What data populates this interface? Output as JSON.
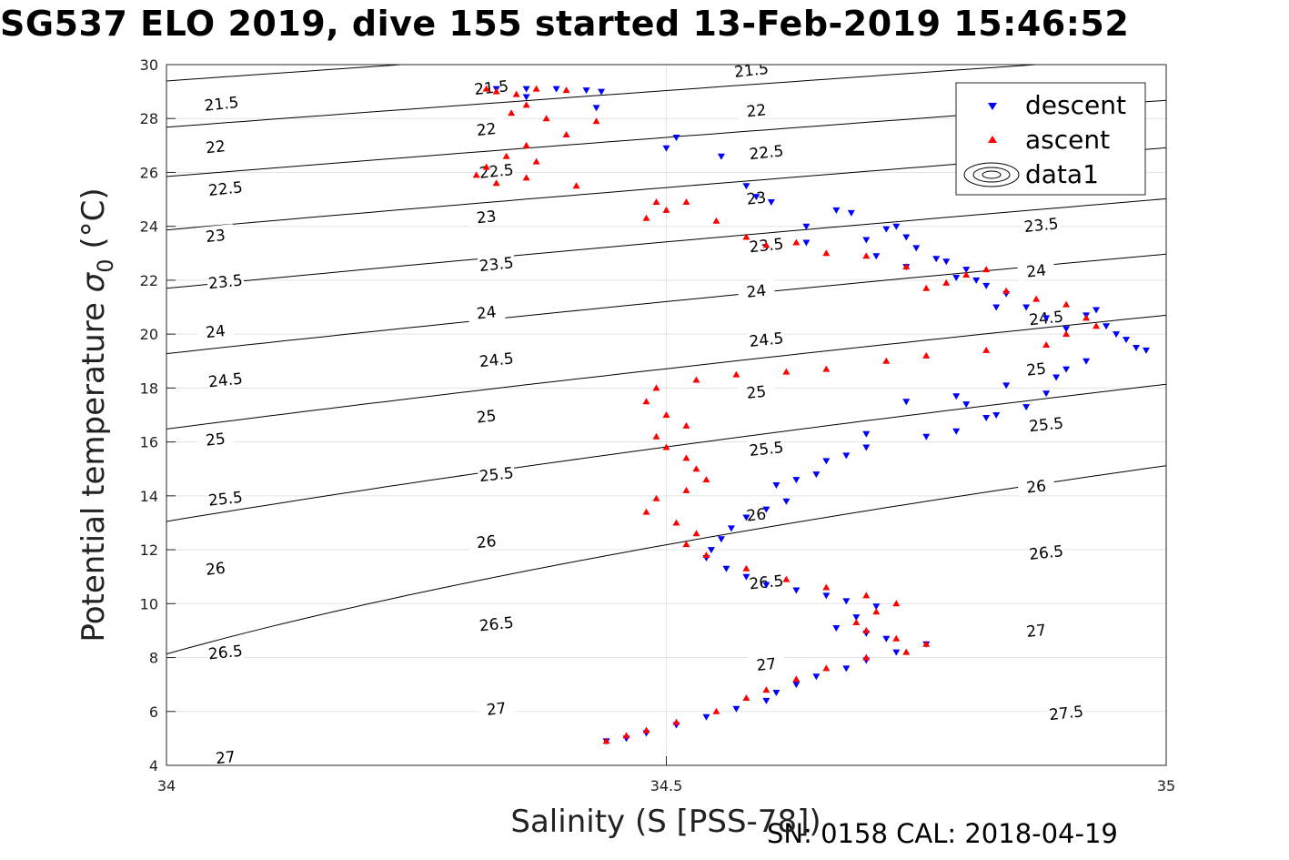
{
  "title": "SG537 ELO 2019, dive 155 started 13-Feb-2019 15:46:52",
  "footer": "SN: 0158  CAL: 2018-04-19",
  "chart_data": {
    "type": "scatter",
    "xlabel": "Salinity (S [PSS-78])",
    "ylabel_main": "Potential temperature ",
    "ylabel_sigma": "σ",
    "ylabel_sub": "0",
    "ylabel_unit": " (°C)",
    "xlim": [
      34,
      35
    ],
    "ylim": [
      4,
      30
    ],
    "xticks": [
      "34",
      "34.5",
      "35"
    ],
    "yticks": [
      "4",
      "6",
      "8",
      "10",
      "12",
      "14",
      "16",
      "18",
      "20",
      "22",
      "24",
      "26",
      "28",
      "30"
    ],
    "grid": true,
    "legend_position": "top-right",
    "legend": [
      "descent",
      "ascent",
      "data1"
    ],
    "colors": {
      "descent": "#0000ff",
      "ascent": "#ff0000",
      "contour": "#000000"
    },
    "contours": [
      21.5,
      22,
      22.5,
      23,
      23.5,
      24,
      24.5,
      25,
      25.5,
      26,
      26.5,
      27,
      27.5
    ],
    "contour_labels": [
      {
        "text": "21.5",
        "s": 34.055,
        "t": 28.55
      },
      {
        "text": "21.5",
        "s": 34.325,
        "t": 29.15
      },
      {
        "text": "21.5",
        "s": 34.585,
        "t": 29.8
      },
      {
        "text": "22",
        "s": 34.049,
        "t": 26.95
      },
      {
        "text": "22",
        "s": 34.32,
        "t": 27.6
      },
      {
        "text": "22",
        "s": 34.59,
        "t": 28.3
      },
      {
        "text": "22.5",
        "s": 34.059,
        "t": 25.4
      },
      {
        "text": "22.5",
        "s": 34.33,
        "t": 26.05
      },
      {
        "text": "22.5",
        "s": 34.6,
        "t": 26.75
      },
      {
        "text": "23",
        "s": 34.049,
        "t": 23.65
      },
      {
        "text": "23",
        "s": 34.32,
        "t": 24.35
      },
      {
        "text": "23",
        "s": 34.59,
        "t": 25.05
      },
      {
        "text": "23.5",
        "s": 34.875,
        "t": 24.05
      },
      {
        "text": "23.5",
        "s": 34.059,
        "t": 21.95
      },
      {
        "text": "23.5",
        "s": 34.33,
        "t": 22.6
      },
      {
        "text": "23.5",
        "s": 34.6,
        "t": 23.3
      },
      {
        "text": "24",
        "s": 34.87,
        "t": 22.35
      },
      {
        "text": "24",
        "s": 34.049,
        "t": 20.1
      },
      {
        "text": "24",
        "s": 34.32,
        "t": 20.8
      },
      {
        "text": "24",
        "s": 34.59,
        "t": 21.6
      },
      {
        "text": "24.5",
        "s": 34.88,
        "t": 20.6
      },
      {
        "text": "24.5",
        "s": 34.059,
        "t": 18.3
      },
      {
        "text": "24.5",
        "s": 34.33,
        "t": 19.05
      },
      {
        "text": "24.5",
        "s": 34.6,
        "t": 19.8
      },
      {
        "text": "25",
        "s": 34.87,
        "t": 18.7
      },
      {
        "text": "25",
        "s": 34.049,
        "t": 16.1
      },
      {
        "text": "25",
        "s": 34.32,
        "t": 16.95
      },
      {
        "text": "25",
        "s": 34.59,
        "t": 17.85
      },
      {
        "text": "25.5",
        "s": 34.88,
        "t": 16.65
      },
      {
        "text": "25.5",
        "s": 34.059,
        "t": 13.9
      },
      {
        "text": "25.5",
        "s": 34.33,
        "t": 14.8
      },
      {
        "text": "25.5",
        "s": 34.6,
        "t": 15.75
      },
      {
        "text": "26",
        "s": 34.87,
        "t": 14.35
      },
      {
        "text": "26",
        "s": 34.049,
        "t": 11.3
      },
      {
        "text": "26",
        "s": 34.32,
        "t": 12.3
      },
      {
        "text": "26",
        "s": 34.59,
        "t": 13.3
      },
      {
        "text": "26.5",
        "s": 34.88,
        "t": 11.9
      },
      {
        "text": "26.5",
        "s": 34.059,
        "t": 8.2
      },
      {
        "text": "26.5",
        "s": 34.33,
        "t": 9.25
      },
      {
        "text": "26.5",
        "s": 34.6,
        "t": 10.8
      },
      {
        "text": "27",
        "s": 34.87,
        "t": 9.0
      },
      {
        "text": "27",
        "s": 34.059,
        "t": 4.3
      },
      {
        "text": "27",
        "s": 34.33,
        "t": 6.1
      },
      {
        "text": "27",
        "s": 34.6,
        "t": 7.75
      },
      {
        "text": "27.5",
        "s": 34.9,
        "t": 5.95
      }
    ],
    "series": [
      {
        "name": "descent",
        "marker": "triangle-down",
        "points": [
          [
            34.33,
            29.1
          ],
          [
            34.36,
            29.1
          ],
          [
            34.39,
            29.1
          ],
          [
            34.42,
            29.05
          ],
          [
            34.435,
            29.0
          ],
          [
            34.43,
            28.4
          ],
          [
            34.36,
            28.8
          ],
          [
            34.5,
            26.9
          ],
          [
            34.51,
            27.3
          ],
          [
            34.555,
            26.6
          ],
          [
            34.58,
            25.5
          ],
          [
            34.59,
            25.1
          ],
          [
            34.605,
            24.9
          ],
          [
            34.64,
            24.0
          ],
          [
            34.64,
            23.4
          ],
          [
            34.67,
            24.6
          ],
          [
            34.685,
            24.5
          ],
          [
            34.7,
            23.5
          ],
          [
            34.72,
            23.9
          ],
          [
            34.71,
            22.9
          ],
          [
            34.73,
            24.0
          ],
          [
            34.74,
            23.6
          ],
          [
            34.74,
            22.5
          ],
          [
            34.75,
            23.2
          ],
          [
            34.77,
            22.8
          ],
          [
            34.79,
            22.1
          ],
          [
            34.78,
            22.7
          ],
          [
            34.8,
            22.4
          ],
          [
            34.81,
            22.0
          ],
          [
            34.82,
            21.8
          ],
          [
            34.83,
            21.0
          ],
          [
            34.84,
            21.5
          ],
          [
            34.86,
            21.0
          ],
          [
            34.88,
            20.6
          ],
          [
            34.9,
            20.2
          ],
          [
            34.92,
            20.7
          ],
          [
            34.93,
            20.9
          ],
          [
            34.94,
            20.3
          ],
          [
            34.95,
            20.0
          ],
          [
            34.96,
            19.8
          ],
          [
            34.97,
            19.5
          ],
          [
            34.98,
            19.4
          ],
          [
            34.92,
            19.0
          ],
          [
            34.9,
            18.7
          ],
          [
            34.89,
            18.4
          ],
          [
            34.88,
            17.8
          ],
          [
            34.86,
            17.3
          ],
          [
            34.84,
            18.1
          ],
          [
            34.82,
            16.9
          ],
          [
            34.79,
            16.4
          ],
          [
            34.76,
            16.2
          ],
          [
            34.7,
            16.3
          ],
          [
            34.79,
            17.7
          ],
          [
            34.8,
            17.4
          ],
          [
            34.83,
            17.0
          ],
          [
            34.74,
            17.5
          ],
          [
            34.7,
            15.8
          ],
          [
            34.68,
            15.5
          ],
          [
            34.66,
            15.3
          ],
          [
            34.65,
            14.8
          ],
          [
            34.63,
            14.6
          ],
          [
            34.61,
            14.4
          ],
          [
            34.62,
            13.8
          ],
          [
            34.6,
            13.5
          ],
          [
            34.58,
            13.2
          ],
          [
            34.565,
            12.8
          ],
          [
            34.555,
            12.4
          ],
          [
            34.545,
            12.0
          ],
          [
            34.54,
            11.7
          ],
          [
            34.56,
            11.3
          ],
          [
            34.58,
            11.0
          ],
          [
            34.6,
            10.7
          ],
          [
            34.63,
            10.5
          ],
          [
            34.66,
            10.3
          ],
          [
            34.68,
            10.1
          ],
          [
            34.71,
            9.9
          ],
          [
            34.69,
            9.5
          ],
          [
            34.67,
            9.1
          ],
          [
            34.7,
            8.9
          ],
          [
            34.72,
            8.7
          ],
          [
            34.76,
            8.5
          ],
          [
            34.73,
            8.2
          ],
          [
            34.7,
            7.9
          ],
          [
            34.68,
            7.6
          ],
          [
            34.65,
            7.3
          ],
          [
            34.63,
            7.0
          ],
          [
            34.61,
            6.7
          ],
          [
            34.6,
            6.4
          ],
          [
            34.57,
            6.1
          ],
          [
            34.54,
            5.8
          ],
          [
            34.51,
            5.5
          ],
          [
            34.48,
            5.2
          ],
          [
            34.46,
            5.0
          ],
          [
            34.44,
            4.9
          ]
        ]
      },
      {
        "name": "ascent",
        "marker": "triangle-up",
        "points": [
          [
            34.32,
            29.1
          ],
          [
            34.33,
            29.0
          ],
          [
            34.35,
            28.9
          ],
          [
            34.37,
            29.1
          ],
          [
            34.4,
            29.05
          ],
          [
            34.36,
            28.5
          ],
          [
            34.345,
            28.2
          ],
          [
            34.38,
            28.0
          ],
          [
            34.43,
            27.9
          ],
          [
            34.4,
            27.4
          ],
          [
            34.36,
            27.0
          ],
          [
            34.34,
            26.6
          ],
          [
            34.32,
            26.2
          ],
          [
            34.31,
            25.9
          ],
          [
            34.33,
            25.6
          ],
          [
            34.41,
            25.5
          ],
          [
            34.37,
            26.4
          ],
          [
            34.36,
            25.8
          ],
          [
            34.49,
            24.9
          ],
          [
            34.5,
            24.6
          ],
          [
            34.52,
            24.9
          ],
          [
            34.48,
            24.3
          ],
          [
            34.55,
            24.2
          ],
          [
            34.58,
            23.6
          ],
          [
            34.6,
            23.3
          ],
          [
            34.63,
            23.4
          ],
          [
            34.66,
            23.0
          ],
          [
            34.7,
            22.9
          ],
          [
            34.74,
            22.5
          ],
          [
            34.8,
            22.2
          ],
          [
            34.82,
            22.4
          ],
          [
            34.78,
            21.9
          ],
          [
            34.76,
            21.7
          ],
          [
            34.84,
            21.6
          ],
          [
            34.87,
            21.3
          ],
          [
            34.9,
            21.1
          ],
          [
            34.92,
            20.6
          ],
          [
            34.93,
            20.3
          ],
          [
            34.9,
            20.0
          ],
          [
            34.88,
            19.6
          ],
          [
            34.82,
            19.4
          ],
          [
            34.76,
            19.2
          ],
          [
            34.72,
            19.0
          ],
          [
            34.66,
            18.7
          ],
          [
            34.62,
            18.6
          ],
          [
            34.57,
            18.5
          ],
          [
            34.53,
            18.3
          ],
          [
            34.49,
            18.0
          ],
          [
            34.48,
            17.5
          ],
          [
            34.5,
            17.0
          ],
          [
            34.52,
            16.6
          ],
          [
            34.49,
            16.2
          ],
          [
            34.5,
            15.8
          ],
          [
            34.52,
            15.4
          ],
          [
            34.53,
            15.0
          ],
          [
            34.54,
            14.6
          ],
          [
            34.52,
            14.2
          ],
          [
            34.49,
            13.9
          ],
          [
            34.48,
            13.4
          ],
          [
            34.51,
            13.0
          ],
          [
            34.53,
            12.6
          ],
          [
            34.52,
            12.2
          ],
          [
            34.54,
            11.8
          ],
          [
            34.58,
            11.3
          ],
          [
            34.62,
            10.9
          ],
          [
            34.66,
            10.6
          ],
          [
            34.7,
            10.3
          ],
          [
            34.73,
            10.0
          ],
          [
            34.71,
            9.7
          ],
          [
            34.69,
            9.3
          ],
          [
            34.7,
            9.0
          ],
          [
            34.73,
            8.7
          ],
          [
            34.76,
            8.5
          ],
          [
            34.74,
            8.2
          ],
          [
            34.7,
            8.0
          ],
          [
            34.66,
            7.6
          ],
          [
            34.63,
            7.2
          ],
          [
            34.6,
            6.8
          ],
          [
            34.58,
            6.5
          ],
          [
            34.55,
            6.0
          ],
          [
            34.51,
            5.6
          ],
          [
            34.48,
            5.3
          ],
          [
            34.46,
            5.1
          ],
          [
            34.44,
            4.9
          ]
        ]
      }
    ]
  }
}
